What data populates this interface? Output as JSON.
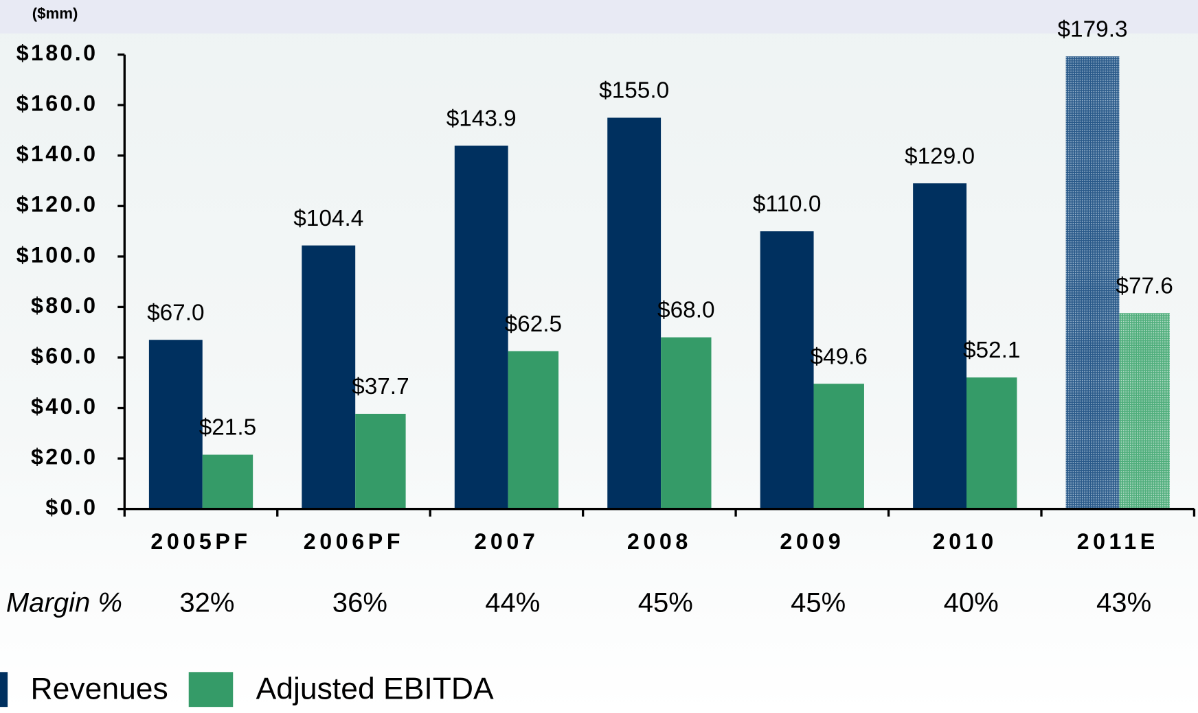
{
  "chart_data": {
    "type": "bar",
    "subtitle": "($mm)",
    "categories": [
      "2005PF",
      "2006PF",
      "2007",
      "2008",
      "2009",
      "2010",
      "2011E"
    ],
    "series": [
      {
        "name": "Revenues",
        "color": "#00305f",
        "values": [
          67.0,
          104.4,
          143.9,
          155.0,
          110.0,
          129.0,
          179.3
        ],
        "value_labels": [
          "$67.0",
          "$104.4",
          "$143.9",
          "$155.0",
          "$110.0",
          "$129.0",
          "$179.3"
        ]
      },
      {
        "name": "Adjusted EBITDA",
        "color": "#359b68",
        "values": [
          21.5,
          37.7,
          62.5,
          68.0,
          49.6,
          52.1,
          77.6
        ],
        "value_labels": [
          "$21.5",
          "$37.7",
          "$62.5",
          "$68.0",
          "$49.6",
          "$52.1",
          "$77.6"
        ]
      }
    ],
    "hatched": [
      false,
      false,
      false,
      false,
      false,
      false,
      true
    ],
    "margin_label": "Margin %",
    "margins": [
      "32%",
      "36%",
      "44%",
      "45%",
      "45%",
      "40%",
      "43%"
    ],
    "ylim": [
      0,
      180
    ],
    "yticks": [
      {
        "value": 0,
        "label": "$0.0"
      },
      {
        "value": 20,
        "label": "$20.0"
      },
      {
        "value": 40,
        "label": "$40.0"
      },
      {
        "value": 60,
        "label": "$60.0"
      },
      {
        "value": 80,
        "label": "$80.0"
      },
      {
        "value": 100,
        "label": "$100.0"
      },
      {
        "value": 120,
        "label": "$120.0"
      },
      {
        "value": 140,
        "label": "$140.0"
      },
      {
        "value": 160,
        "label": "$160.0"
      },
      {
        "value": 180,
        "label": "$180.0"
      }
    ],
    "legend": "bottom-left"
  }
}
